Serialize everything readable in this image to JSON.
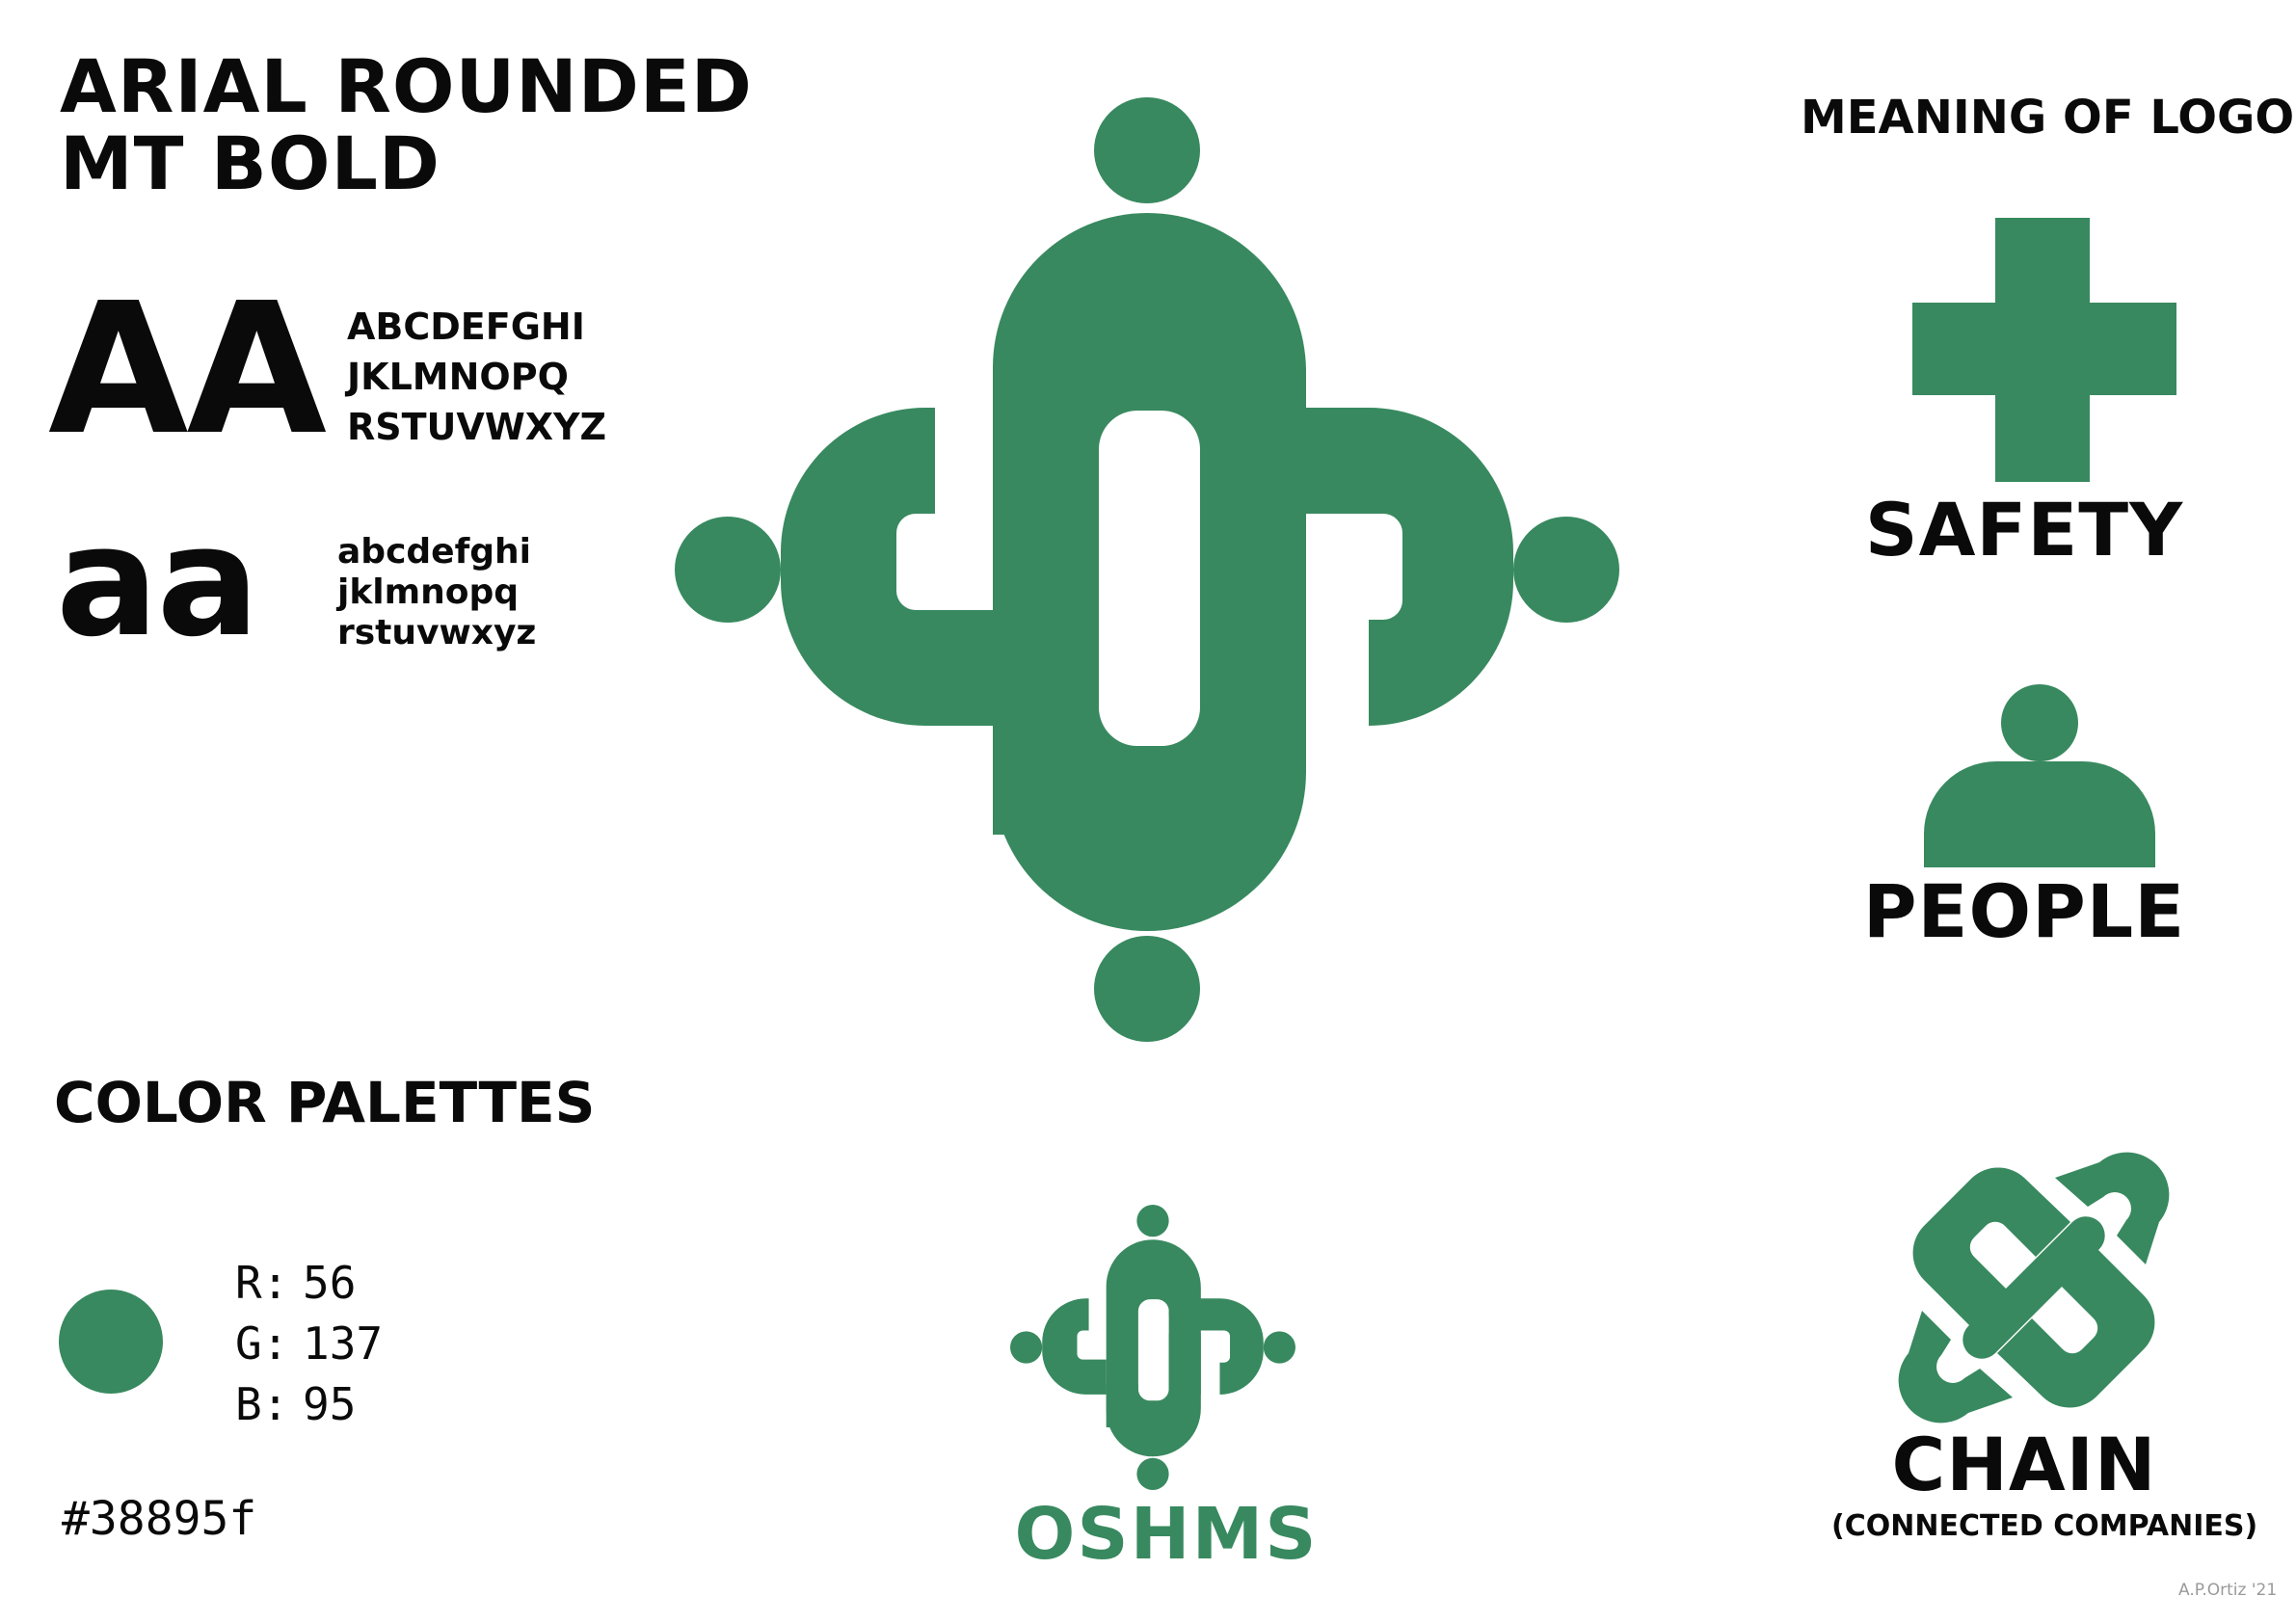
{
  "typography": {
    "font_title_line1": "ARIAL ROUNDED",
    "font_title_line2": "MT BOLD",
    "sample_upper": "AA",
    "upper_line1": "ABCDEFGHI",
    "upper_line2": "JKLMNOPQ",
    "upper_line3": "RSTUVWXYZ",
    "sample_lower": "aa",
    "lower_line1": "abcdefghi",
    "lower_line2": "jklmnopq",
    "lower_line3": "rstuvwxyz"
  },
  "palette": {
    "title": "COLOR PALETTES",
    "swatch_color": "#38895f",
    "r_label": "R:",
    "r_value": "56",
    "g_label": "G:",
    "g_value": "137",
    "b_label": "B:",
    "b_value": "95",
    "hex": "#38895f"
  },
  "brand": {
    "name": "OSHMS",
    "main_logo_icon": "oshms-logo-icon",
    "small_logo_icon": "oshms-logo-small-icon"
  },
  "meaning": {
    "title": "MEANING OF LOGO",
    "items": [
      {
        "icon": "cross-icon",
        "label": "SAFETY"
      },
      {
        "icon": "person-icon",
        "label": "PEOPLE"
      },
      {
        "icon": "chain-icon",
        "label": "CHAIN",
        "sublabel": "(CONNECTED COMPANIES)"
      }
    ]
  },
  "credit": "A.P.Ortiz '21"
}
